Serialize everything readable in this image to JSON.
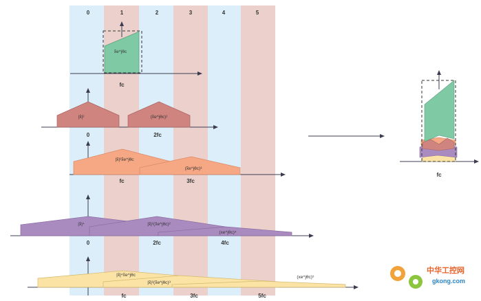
{
  "zones": {
    "labels": [
      "0",
      "1",
      "2",
      "3",
      "4",
      "5"
    ]
  },
  "rows": [
    {
      "tick_labels": [
        "fc"
      ],
      "shapes": [
        {
          "label": "x̃e^jθc"
        }
      ]
    },
    {
      "tick_labels": [
        "0",
        "2fc"
      ],
      "shapes": [
        {
          "label": "|x̃|²"
        },
        {
          "label": "(x̃e^jθc)²"
        }
      ]
    },
    {
      "tick_labels": [
        "fc",
        "3fc"
      ],
      "shapes": [
        {
          "label": "|x̃|²x̃e^jθc"
        },
        {
          "label": "(x̃e^jθc)³"
        }
      ]
    },
    {
      "tick_labels": [
        "0",
        "2fc",
        "4fc"
      ],
      "shapes": [
        {
          "label": "|x̃|⁴"
        },
        {
          "label": "|x̃|²(x̃e^jθc)²"
        },
        {
          "label": "(xe^jθc)⁴"
        }
      ]
    },
    {
      "tick_labels": [
        "fc",
        "3fc",
        "5fc"
      ],
      "shapes": [
        {
          "label": "|x̃|⁴x̃e^jθc"
        },
        {
          "label": "|x̃|²(x̃e^jθc)³"
        },
        {
          "label": "(xe^jθc)⁵"
        }
      ]
    }
  ],
  "result": {
    "tick_label": "fc"
  },
  "watermark": {
    "title": "中华工控网",
    "url": "gkong.com"
  },
  "colors": {
    "zone_blue": "#dbeef9",
    "zone_pink": "#ecd0cc",
    "green": "#7fcaa4",
    "rose": "#cf8480",
    "salmon": "#f5a883",
    "purple": "#a98bc0",
    "yellow": "#fbe3a5",
    "axis": "#3c3c50"
  }
}
